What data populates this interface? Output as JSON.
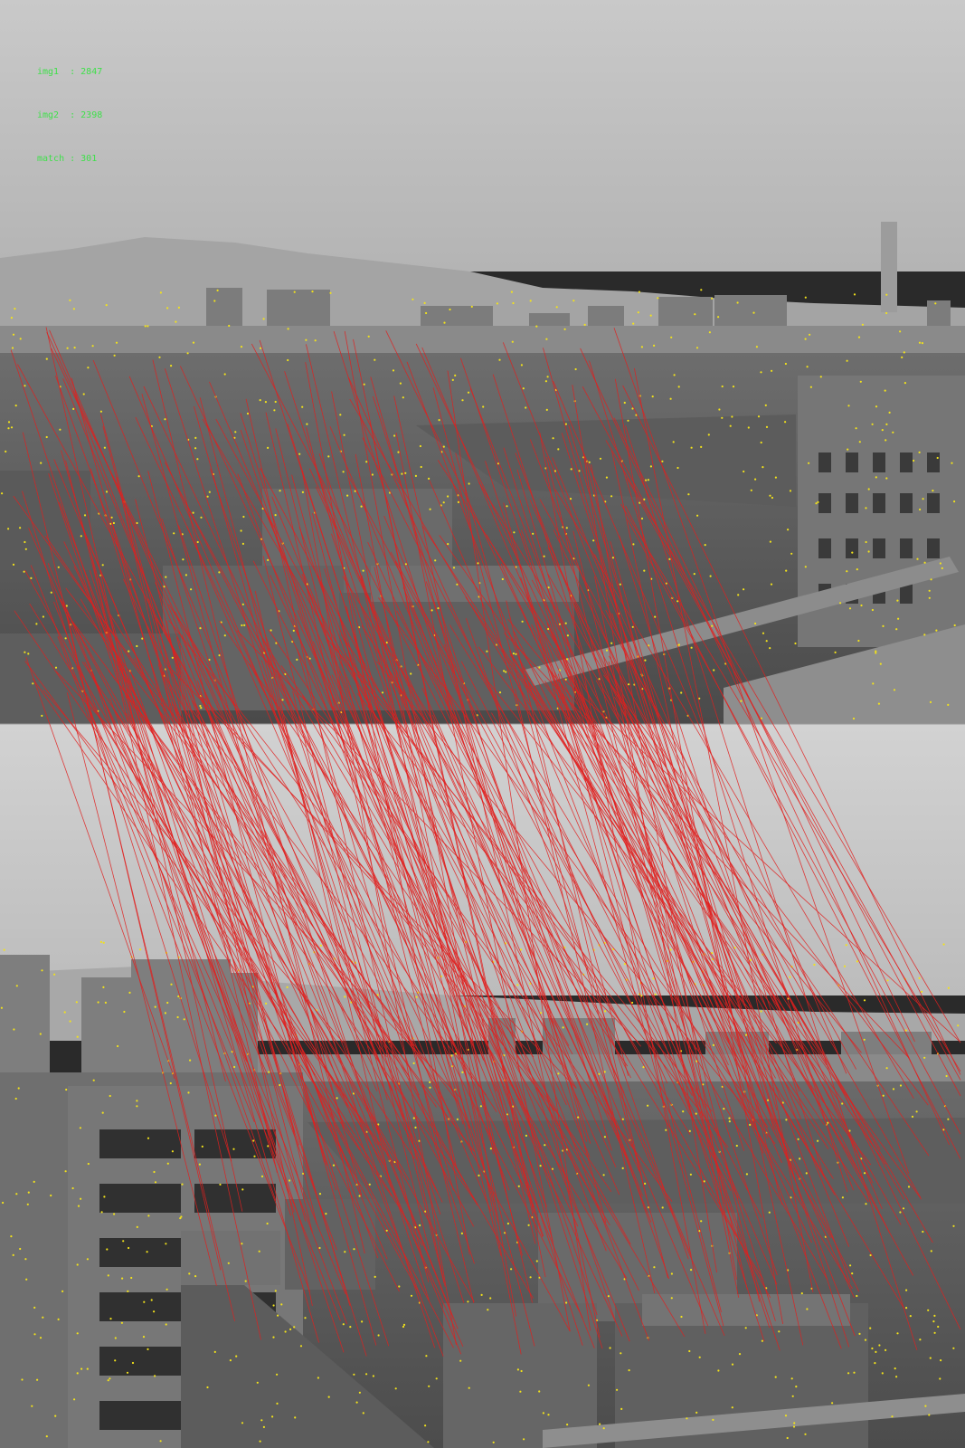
{
  "stats": {
    "img1_line": "img1  : 2847",
    "img2_line": "img2  : 2398",
    "match_line": "match : 301"
  },
  "colors": {
    "match_line": "#e0201e",
    "keypoint": "#f2e21a",
    "label_text": "#3fe04a"
  }
}
